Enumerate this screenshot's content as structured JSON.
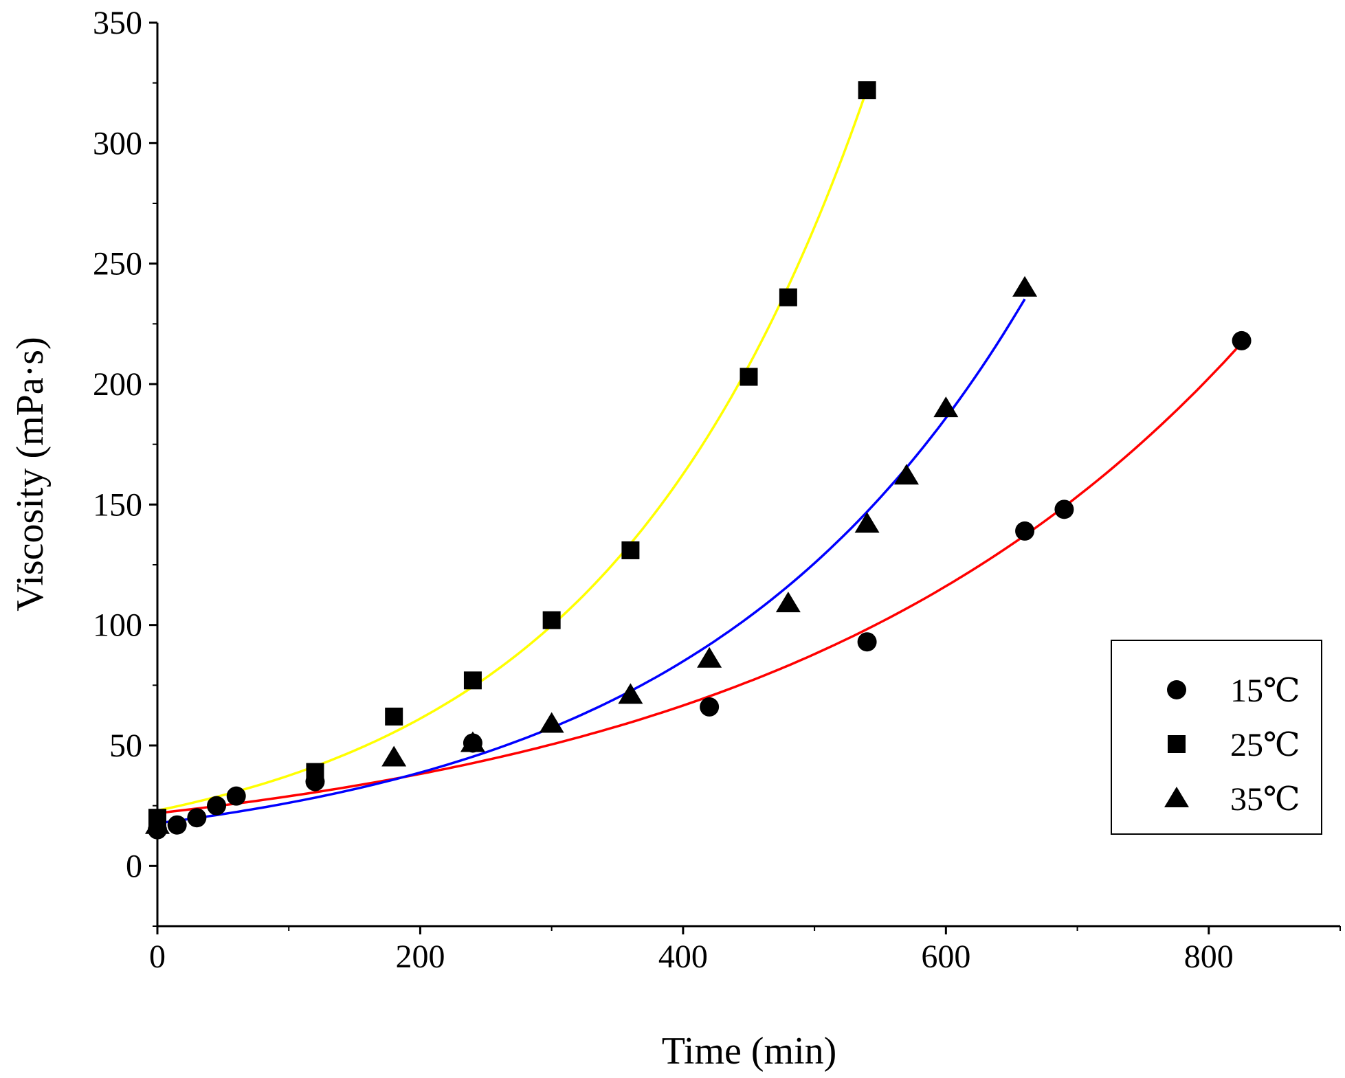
{
  "chart_data": {
    "type": "scatter",
    "title": "",
    "xlabel": "Time (min)",
    "ylabel": "Viscosity (mPa·s)",
    "xlim": [
      0,
      900
    ],
    "ylim": [
      -25,
      350
    ],
    "x_ticks": [
      0,
      200,
      400,
      600,
      800
    ],
    "x_tick_labels": [
      "0",
      "200",
      "400",
      "600",
      "800"
    ],
    "y_ticks": [
      0,
      50,
      100,
      150,
      200,
      250,
      300,
      350
    ],
    "y_tick_labels": [
      "0",
      "50",
      "100",
      "150",
      "200",
      "250",
      "300",
      "350"
    ],
    "legend_position": "right",
    "series": [
      {
        "name": "15℃",
        "marker": "circle",
        "fit_color": "#ff0000",
        "fit_x_range": [
          0,
          825
        ],
        "fit_model": "exponential",
        "fit_params": {
          "a": 21.9,
          "b": 0.00278
        },
        "x": [
          0,
          15,
          30,
          45,
          60,
          120,
          240,
          420,
          540,
          660,
          690,
          825
        ],
        "y": [
          15,
          17,
          20,
          25,
          29,
          35,
          51,
          66,
          93,
          139,
          148,
          218
        ]
      },
      {
        "name": "25℃",
        "marker": "square",
        "fit_color": "#ffff00",
        "fit_x_range": [
          0,
          540
        ],
        "fit_model": "exponential",
        "fit_params": {
          "a": 23.0,
          "b": 0.00489
        },
        "x": [
          0,
          120,
          180,
          240,
          300,
          360,
          450,
          480,
          540
        ],
        "y": [
          20,
          39,
          62,
          77,
          102,
          131,
          203,
          236,
          322
        ]
      },
      {
        "name": "35℃",
        "marker": "triangle",
        "fit_color": "#0000ff",
        "fit_x_range": [
          0,
          660
        ],
        "fit_model": "exponential",
        "fit_params": {
          "a": 17.7,
          "b": 0.00392
        },
        "x": [
          0,
          180,
          240,
          300,
          360,
          420,
          480,
          540,
          570,
          600,
          660
        ],
        "y": [
          17,
          45,
          51,
          59,
          71,
          86,
          109,
          142,
          162,
          190,
          240
        ]
      }
    ]
  }
}
